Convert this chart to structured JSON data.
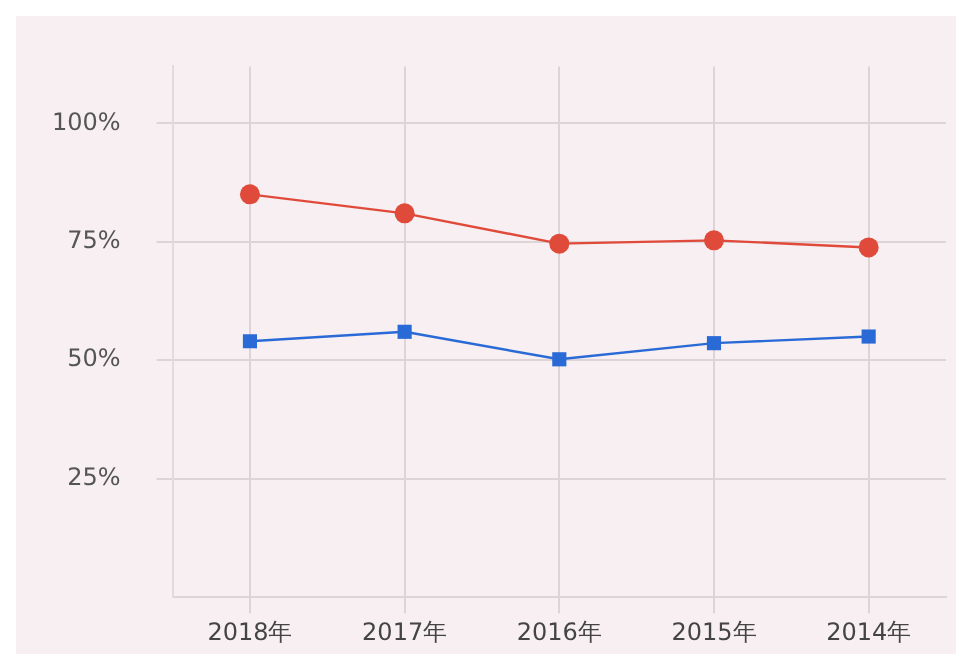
{
  "chart_data": {
    "type": "line",
    "categories": [
      "2018年",
      "2017年",
      "2016年",
      "2015年",
      "2014年"
    ],
    "series": [
      {
        "color": "#e04a3a",
        "marker": "circle",
        "values": [
          85,
          81,
          74.6,
          75.3,
          73.8
        ]
      },
      {
        "color": "#2a6ad6",
        "marker": "square",
        "values": [
          54,
          56,
          50.2,
          53.6,
          55
        ]
      }
    ],
    "ylim": [
      0,
      112
    ],
    "yticks": [
      {
        "value": 25,
        "label": "25%"
      },
      {
        "value": 50,
        "label": "50%"
      },
      {
        "value": 75,
        "label": "75%"
      },
      {
        "value": 100,
        "label": "100%"
      }
    ],
    "grid": true,
    "legend": false
  }
}
